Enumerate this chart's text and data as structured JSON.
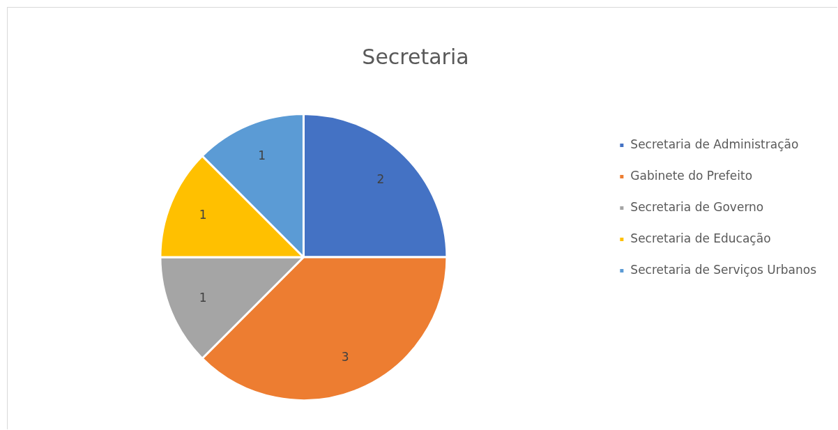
{
  "chart_data": {
    "type": "pie",
    "title": "Secretaria",
    "categories": [
      "Secretaria de Administração",
      "Gabinete do Prefeito",
      "Secretaria de Governo",
      "Secretaria de Educação",
      "Secretaria de Serviços Urbanos"
    ],
    "values": [
      2,
      3,
      1,
      1,
      1
    ],
    "colors": [
      "#4472c4",
      "#ed7d31",
      "#a5a5a5",
      "#ffc000",
      "#5b9bd5"
    ],
    "data_labels": true,
    "legend": "right"
  }
}
